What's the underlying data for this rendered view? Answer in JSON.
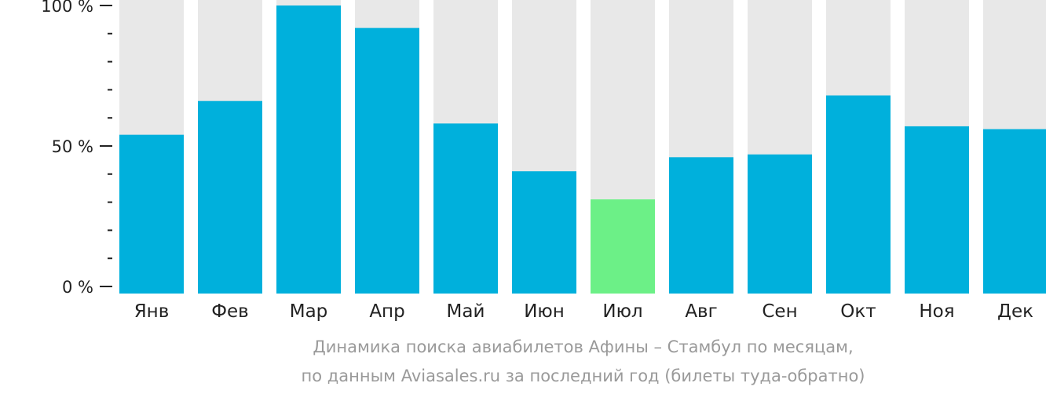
{
  "chart_data": {
    "type": "bar",
    "categories": [
      "Янв",
      "Фев",
      "Мар",
      "Апр",
      "Май",
      "Июн",
      "Июл",
      "Авг",
      "Сен",
      "Окт",
      "Ноя",
      "Дек"
    ],
    "values": [
      54,
      66,
      100,
      92,
      58,
      41,
      31,
      46,
      47,
      68,
      57,
      56
    ],
    "ylim": [
      0,
      100
    ],
    "y_ticks": [
      {
        "value": 0,
        "label": "0 %"
      },
      {
        "value": 50,
        "label": "50 %"
      },
      {
        "value": 100,
        "label": "100 %"
      }
    ],
    "minor_tick_step": 10,
    "highlight_index": 6,
    "colors": {
      "bar": "#00b0dc",
      "highlight": "#6cf087",
      "background_bar": "#e8e8e8",
      "axis": "#222222"
    }
  },
  "caption": {
    "line1": "Динамика поиска авиабилетов Афины – Стамбул по месяцам,",
    "line2": "по данным Aviasales.ru за последний год (билеты туда-обратно)"
  }
}
